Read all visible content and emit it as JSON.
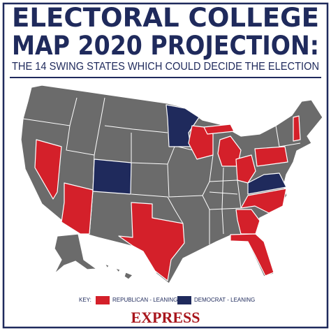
{
  "header": {
    "title_lines": [
      "ELECTORAL COLLEGE",
      "MAP 2020 PROJECTION:"
    ],
    "subtitle": "THE 14 SWING STATES WHICH COULD DECIDE THE ELECTION"
  },
  "key": {
    "label": "KEY:",
    "items": [
      {
        "label": "REPUBLICAN - LEANING",
        "color": "#d4202a"
      },
      {
        "label": "DEMOCRAT - LEANING",
        "color": "#1f2a5c"
      }
    ]
  },
  "footer": {
    "logo": "EXPRESS"
  }
}
